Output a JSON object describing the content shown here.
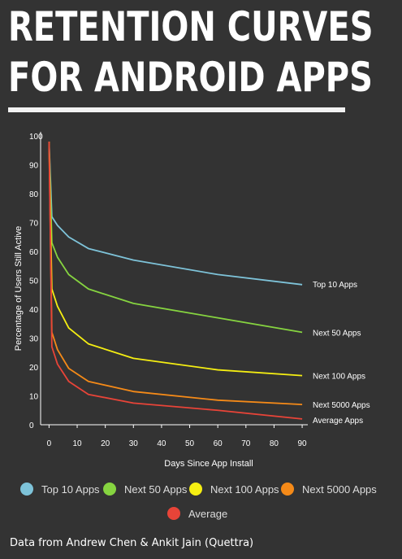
{
  "title_lines": [
    "RETENTION CURVES",
    "FOR ANDROID APPS"
  ],
  "source": "Data from Andrew Chen & Ankit Jain (Quettra)",
  "chart_data": {
    "type": "line",
    "xlabel": "Days Since App Install",
    "ylabel": "Percentage of Users Still Active",
    "xlim": [
      -3,
      92
    ],
    "ylim": [
      0,
      100
    ],
    "x_ticks": [
      0,
      10,
      20,
      30,
      40,
      50,
      60,
      70,
      80,
      90
    ],
    "y_ticks": [
      0,
      10,
      20,
      30,
      40,
      50,
      60,
      70,
      80,
      90,
      100
    ],
    "legend_position": "bottom",
    "series": [
      {
        "name": "Top 10 Apps",
        "label": "Top 10 Apps",
        "color": "#7ec3d9",
        "x": [
          0,
          1,
          3,
          7,
          14,
          30,
          60,
          90
        ],
        "y": [
          98,
          72,
          69,
          65,
          61,
          57,
          52,
          48.5
        ]
      },
      {
        "name": "Next 50 Apps",
        "label": "Next 50 Apps",
        "color": "#86d440",
        "x": [
          0,
          1,
          3,
          7,
          14,
          30,
          60,
          90
        ],
        "y": [
          98,
          63,
          58,
          52,
          47,
          42,
          37,
          32
        ]
      },
      {
        "name": "Next 100 Apps",
        "label": "Next 100 Apps",
        "color": "#f5ee12",
        "x": [
          0,
          1,
          3,
          7,
          14,
          30,
          60,
          90
        ],
        "y": [
          98,
          47,
          41,
          33.5,
          28,
          23,
          19,
          17
        ]
      },
      {
        "name": "Next 5000 Apps",
        "label": "Next 5000 Apps",
        "color": "#f58a18",
        "x": [
          0,
          1,
          3,
          7,
          14,
          30,
          60,
          90
        ],
        "y": [
          98,
          32,
          26,
          19.5,
          15,
          11.5,
          8.5,
          7
        ]
      },
      {
        "name": "Average",
        "label": "Average Apps",
        "color": "#e84438",
        "x": [
          0,
          1,
          3,
          7,
          14,
          30,
          60,
          90
        ],
        "y": [
          98,
          27,
          21,
          15,
          10.5,
          7.5,
          5,
          2
        ]
      }
    ]
  }
}
